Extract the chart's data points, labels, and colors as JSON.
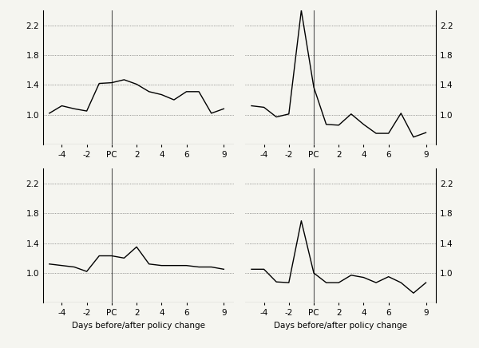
{
  "ylim": [
    0.6,
    2.4
  ],
  "yticks": [
    1.0,
    1.4,
    1.8,
    2.2
  ],
  "yticks_with_bottom": [
    0.6,
    1.0,
    1.4,
    1.8,
    2.2
  ],
  "xlabel": "Days before/after policy change",
  "line_color": "#000000",
  "vline_color": "#555555",
  "grid_color": "#555555",
  "background_color": "#f5f5f0",
  "top_left_x": [
    -5,
    -4,
    -3,
    -2,
    -1,
    0,
    1,
    2,
    3,
    4,
    5,
    6,
    7,
    8,
    9
  ],
  "top_left_y": [
    1.02,
    1.12,
    1.08,
    1.05,
    1.42,
    1.43,
    1.47,
    1.41,
    1.31,
    1.27,
    1.2,
    1.31,
    1.31,
    1.02,
    1.08
  ],
  "top_right_x": [
    -5,
    -4,
    -3,
    -2,
    -1,
    0,
    1,
    2,
    3,
    4,
    5,
    6,
    7,
    8,
    9
  ],
  "top_right_y": [
    1.12,
    1.1,
    0.97,
    1.01,
    2.4,
    1.37,
    0.87,
    0.86,
    1.01,
    0.87,
    0.75,
    0.75,
    1.02,
    0.7,
    0.76
  ],
  "bottom_left_x": [
    -5,
    -4,
    -3,
    -2,
    -1,
    0,
    1,
    2,
    3,
    4,
    5,
    6,
    7,
    8,
    9
  ],
  "bottom_left_y": [
    1.12,
    1.1,
    1.08,
    1.02,
    1.23,
    1.23,
    1.2,
    1.35,
    1.12,
    1.1,
    1.1,
    1.1,
    1.08,
    1.08,
    1.05
  ],
  "bottom_right_x": [
    -5,
    -4,
    -3,
    -2,
    -1,
    0,
    1,
    2,
    3,
    4,
    5,
    6,
    7,
    8,
    9
  ],
  "bottom_right_y": [
    1.05,
    1.05,
    0.88,
    0.87,
    1.7,
    1.0,
    0.87,
    0.87,
    0.97,
    0.94,
    0.87,
    0.95,
    0.87,
    0.73,
    0.87
  ],
  "xtick_positions": [
    -4,
    -2,
    0,
    2,
    4,
    6,
    9
  ],
  "xtick_labels": [
    "-4",
    "-2",
    "PC",
    "2",
    "4",
    "6",
    "9"
  ],
  "xlim": [
    -5.5,
    9.8
  ]
}
